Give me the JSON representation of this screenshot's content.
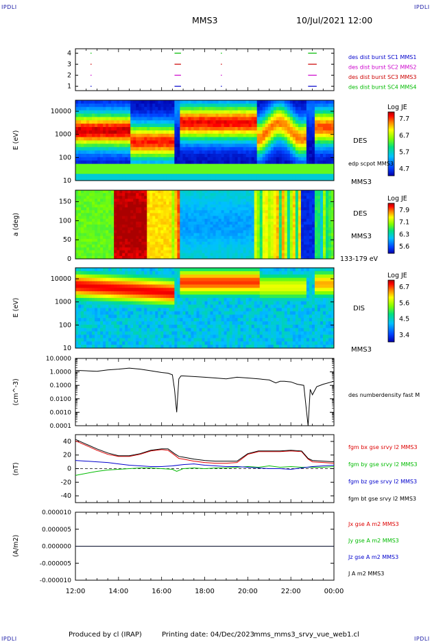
{
  "header": {
    "corner_label": "IPDLI",
    "spacecraft": "MMS3",
    "datetime": "10/Jul/2021 12:00"
  },
  "footer": {
    "producer": "Produced by cl (IRAP)",
    "printing_date": "Printing date: 04/Dec/2023",
    "filename": "mms_mms3_srvy_vue_web1.cl"
  },
  "colors": {
    "mms1": "#0000cc",
    "mms2": "#cc00cc",
    "mms3": "#cc0000",
    "mms4": "#00bb00",
    "bx": "#dd0000",
    "by": "#00bb00",
    "bz": "#0000cc",
    "bt": "#000000"
  },
  "chart_data": [
    {
      "type": "scatter",
      "panel": "availability",
      "yticks": [
        1,
        2,
        3,
        4
      ],
      "ylim": [
        0.6,
        4.4
      ],
      "legend": [
        {
          "label": "des dist burst SC1 MMS1",
          "color": "#0000cc"
        },
        {
          "label": "des dist burst SC2 MMS2",
          "color": "#cc00cc"
        },
        {
          "label": "des dist burst SC3 MMS3",
          "color": "#cc0000"
        },
        {
          "label": "des dist burst SC4 MMS4",
          "color": "#00bb00"
        }
      ],
      "burst_intervals_hours": [
        [
          12.7,
          12.72
        ],
        [
          16.6,
          16.9
        ],
        [
          18.75,
          18.78
        ],
        [
          22.8,
          23.2
        ]
      ]
    },
    {
      "type": "heatmap",
      "panel": "des-energy",
      "ylabel": "E (eV)",
      "yscale": "log",
      "ylim": [
        10,
        30000
      ],
      "yticks": [
        "10",
        "100",
        "1000",
        "10000"
      ],
      "colorbar_title": "Log JE",
      "colorbar_ticks": [
        "7.7",
        "6.7",
        "5.7",
        "4.7"
      ],
      "side_labels": [
        "DES",
        "edp scpot MMS3",
        "MMS3"
      ]
    },
    {
      "type": "heatmap",
      "panel": "des-pitch",
      "ylabel": "a (deg)",
      "ylim": [
        0,
        180
      ],
      "yticks": [
        "0",
        "50",
        "100",
        "150"
      ],
      "colorbar_title": "Log JE",
      "colorbar_ticks": [
        "7.9",
        "7.1",
        "6.3",
        "5.6"
      ],
      "side_labels": [
        "DES",
        "MMS3",
        "133-179 eV"
      ]
    },
    {
      "type": "heatmap",
      "panel": "dis-energy",
      "ylabel": "E (eV)",
      "yscale": "log",
      "ylim": [
        10,
        30000
      ],
      "yticks": [
        "10",
        "100",
        "1000",
        "10000"
      ],
      "colorbar_title": "Log JE",
      "colorbar_ticks": [
        "6.7",
        "5.6",
        "4.5",
        "3.4"
      ],
      "side_labels": [
        "DIS",
        "MMS3"
      ]
    },
    {
      "type": "line",
      "panel": "density",
      "ylabel": "(cm^-3)",
      "yscale": "log",
      "ylim": [
        0.0001,
        10
      ],
      "yticks": [
        "0.0001",
        "0.0010",
        "0.0100",
        "0.1000",
        "1.0000",
        "10.0000"
      ],
      "series": [
        {
          "name": "des numberdensity fast M",
          "color": "#000000",
          "x": [
            12.0,
            12.5,
            13.0,
            13.5,
            14.0,
            14.5,
            15.0,
            15.5,
            16.0,
            16.3,
            16.5,
            16.6,
            16.7,
            16.8,
            16.9,
            17.0,
            17.5,
            18.0,
            18.5,
            19.0,
            19.5,
            20.0,
            20.5,
            21.0,
            21.3,
            21.5,
            21.7,
            22.0,
            22.3,
            22.6,
            22.8,
            22.9,
            23.0,
            23.2,
            23.5,
            24.0
          ],
          "values": [
            1.3,
            1.2,
            1.1,
            1.4,
            1.6,
            1.9,
            1.6,
            1.2,
            0.9,
            0.8,
            0.6,
            0.05,
            0.001,
            0.3,
            0.5,
            0.5,
            0.45,
            0.4,
            0.35,
            0.3,
            0.4,
            0.35,
            0.3,
            0.25,
            0.15,
            0.2,
            0.2,
            0.18,
            0.12,
            0.1,
            0.0001,
            0.05,
            0.02,
            0.08,
            0.12,
            0.2
          ]
        }
      ]
    },
    {
      "type": "line",
      "panel": "magnetic-field",
      "ylabel": "(nT)",
      "ylim": [
        -50,
        50
      ],
      "yticks": [
        "-40",
        "-20",
        "0",
        "20",
        "40"
      ],
      "series": [
        {
          "name": "fgm bx gse srvy l2 MMS3",
          "color": "#dd0000",
          "x": [
            12.0,
            12.5,
            13.0,
            13.5,
            14.0,
            14.5,
            15.0,
            15.5,
            16.0,
            16.3,
            16.6,
            16.8,
            17.0,
            17.5,
            18.0,
            18.5,
            19.0,
            19.5,
            20.0,
            20.5,
            21.0,
            21.5,
            22.0,
            22.5,
            22.8,
            23.0,
            23.5,
            24.0
          ],
          "values": [
            41,
            34,
            27,
            21,
            18,
            18,
            21,
            26,
            28,
            27,
            20,
            15,
            14,
            11,
            9,
            8,
            8,
            9,
            21,
            25,
            25,
            25,
            26,
            25,
            14,
            10,
            9,
            8
          ]
        },
        {
          "name": "fgm by gse srvy l2 MMS3",
          "color": "#00bb00",
          "x": [
            12.0,
            12.5,
            13.0,
            13.5,
            14.0,
            14.5,
            15.0,
            15.5,
            16.0,
            16.5,
            16.7,
            17.0,
            17.5,
            18.0,
            18.5,
            19.0,
            19.5,
            20.0,
            20.5,
            21.0,
            21.5,
            22.0,
            22.5,
            23.0,
            23.5,
            24.0
          ],
          "values": [
            -10,
            -7,
            -4,
            -2,
            -1,
            0,
            1,
            1,
            0,
            -1,
            -4,
            0,
            1,
            0,
            1,
            1,
            2,
            3,
            2,
            4,
            2,
            3,
            2,
            2,
            2,
            3
          ]
        },
        {
          "name": "fgm bz gse srvy l2 MMS3",
          "color": "#0000cc",
          "x": [
            12.0,
            12.5,
            13.0,
            13.5,
            14.0,
            14.5,
            15.0,
            15.5,
            16.0,
            16.5,
            17.0,
            17.5,
            18.0,
            18.5,
            19.0,
            19.5,
            20.0,
            20.5,
            21.0,
            21.5,
            22.0,
            22.5,
            23.0,
            23.5,
            24.0
          ],
          "values": [
            12,
            11,
            10,
            9,
            7,
            5,
            4,
            3,
            3,
            4,
            6,
            7,
            5,
            4,
            3,
            3,
            2,
            1,
            0,
            0,
            -1,
            1,
            3,
            4,
            5
          ]
        },
        {
          "name": "fgm bt gse srvy l2 MMS3",
          "color": "#000000",
          "x": [
            12.0,
            12.5,
            13.0,
            13.5,
            14.0,
            14.5,
            15.0,
            15.5,
            16.0,
            16.3,
            16.6,
            16.8,
            17.0,
            17.5,
            18.0,
            18.5,
            19.0,
            19.5,
            20.0,
            20.5,
            21.0,
            21.5,
            22.0,
            22.5,
            22.8,
            23.0,
            23.5,
            24.0
          ],
          "values": [
            43,
            36,
            29,
            23,
            19,
            19,
            22,
            27,
            29,
            29,
            22,
            18,
            17,
            14,
            12,
            11,
            11,
            11,
            22,
            26,
            26,
            26,
            27,
            26,
            15,
            12,
            11,
            10
          ]
        }
      ]
    },
    {
      "type": "line",
      "panel": "current-density",
      "ylabel": "(A/m2)",
      "ylim": [
        -1e-05,
        1e-05
      ],
      "yticks": [
        "-0.000010",
        "-0.000005",
        "0.000000",
        "0.000005",
        "0.000010"
      ],
      "xticks": [
        "12:00",
        "14:00",
        "16:00",
        "18:00",
        "20:00",
        "22:00",
        "00:00"
      ],
      "series": [
        {
          "name": "Jx gse A m2 MMS3",
          "color": "#dd0000",
          "x": [
            12,
            24
          ],
          "values": [
            0,
            0
          ]
        },
        {
          "name": "Jy gse A m2 MMS3",
          "color": "#00bb00",
          "x": [
            12,
            24
          ],
          "values": [
            0,
            0
          ]
        },
        {
          "name": "Jz gse A m2 MMS3",
          "color": "#0000cc",
          "x": [
            12,
            24
          ],
          "values": [
            0,
            0
          ]
        },
        {
          "name": "J A m2 MMS3",
          "color": "#000000",
          "x": [
            12,
            24
          ],
          "values": [
            0,
            0
          ]
        }
      ]
    }
  ]
}
